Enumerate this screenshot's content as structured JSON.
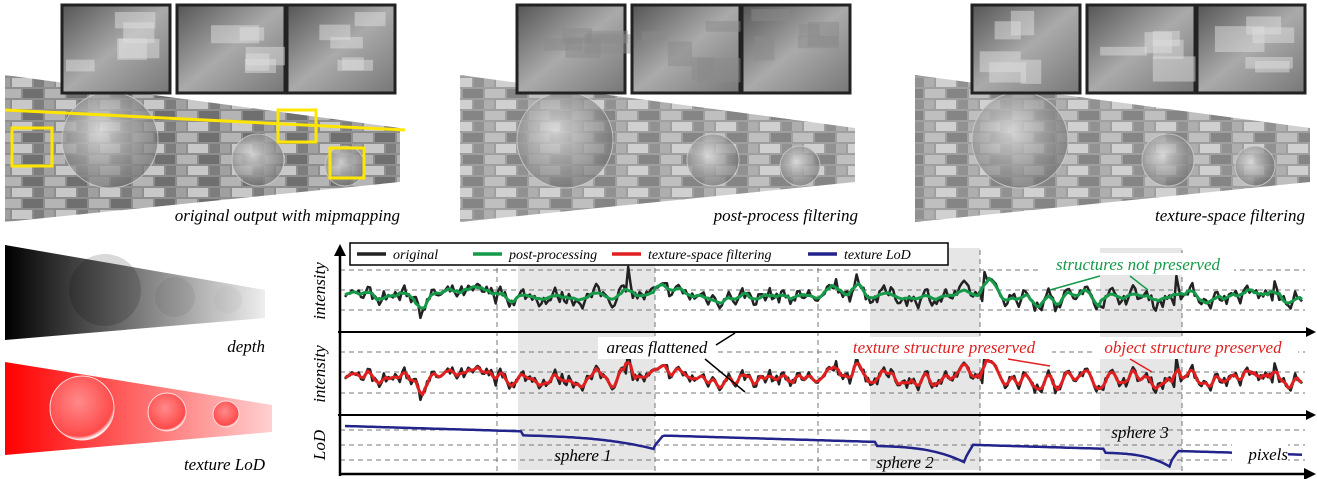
{
  "panels": [
    {
      "caption": "original output with mipmapping"
    },
    {
      "caption": "post-process filtering"
    },
    {
      "caption": "texture-space filtering"
    }
  ],
  "maps": [
    {
      "label": "depth"
    },
    {
      "label": "texture LoD"
    }
  ],
  "plot": {
    "legend": [
      "original",
      "post-processing",
      "texture-space filtering",
      "texture LoD"
    ],
    "axis_labels": [
      "intensity",
      "intensity",
      "LoD"
    ],
    "annotations": {
      "structures": "structures not preserved",
      "flattened": "areas flattened",
      "texture": "texture structure preserved",
      "object": "object structure preserved"
    },
    "spheres": [
      "sphere 1",
      "sphere 2",
      "sphere 3"
    ],
    "x_label": "pixels"
  }
}
